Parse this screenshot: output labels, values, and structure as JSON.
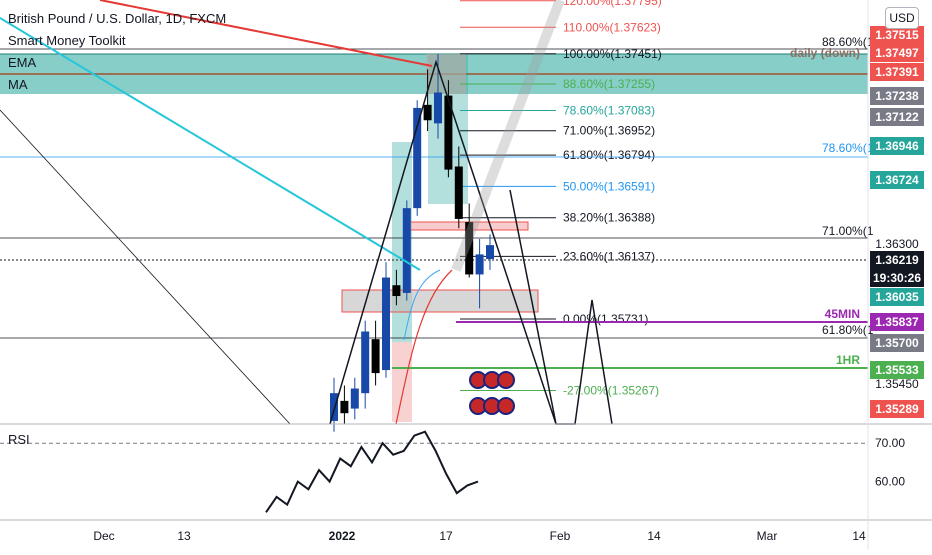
{
  "header": {
    "title": "British Pound / U.S. Dollar, 1D, FXCM",
    "indicators": [
      "Smart Money Toolkit",
      "EMA",
      "MA"
    ],
    "currency_button": "USD"
  },
  "rsi_pane": {
    "label": "RSI",
    "ticks": [
      "70.00",
      "60.00"
    ]
  },
  "colors": {
    "bull": "#1848a8",
    "bear": "#000000",
    "supply_zone": "#26a69a",
    "fib_up": "#ef5350",
    "fib_blue": "#2196f3",
    "fib_green": "#4caf50",
    "trend_red": "#e53935",
    "trend_cyan": "#26c6da",
    "tag_45min": "#9c27b0",
    "tag_1hr": "#4caf50",
    "price_tag": "#131722"
  },
  "chart_data": {
    "type": "candlestick",
    "symbol": "British Pound / U.S. Dollar",
    "timeframe": "1D",
    "exchange": "FXCM",
    "x_ticks": [
      "Dec",
      "13",
      "2022",
      "17",
      "Feb",
      "14",
      "Mar",
      "14"
    ],
    "y_range": [
      1.3505,
      1.378
    ],
    "candles": [
      {
        "o": 1.3507,
        "h": 1.3535,
        "l": 1.35,
        "c": 1.3525
      },
      {
        "o": 1.352,
        "h": 1.353,
        "l": 1.3505,
        "c": 1.3512
      },
      {
        "o": 1.3515,
        "h": 1.3535,
        "l": 1.3508,
        "c": 1.3528
      },
      {
        "o": 1.3525,
        "h": 1.3572,
        "l": 1.3515,
        "c": 1.3565
      },
      {
        "o": 1.356,
        "h": 1.3572,
        "l": 1.353,
        "c": 1.3538
      },
      {
        "o": 1.354,
        "h": 1.361,
        "l": 1.3535,
        "c": 1.36
      },
      {
        "o": 1.3595,
        "h": 1.3605,
        "l": 1.3582,
        "c": 1.3588
      },
      {
        "o": 1.359,
        "h": 1.365,
        "l": 1.3585,
        "c": 1.3645
      },
      {
        "o": 1.3645,
        "h": 1.3715,
        "l": 1.364,
        "c": 1.371
      },
      {
        "o": 1.3712,
        "h": 1.3735,
        "l": 1.3695,
        "c": 1.3702
      },
      {
        "o": 1.37,
        "h": 1.3745,
        "l": 1.369,
        "c": 1.372
      },
      {
        "o": 1.3718,
        "h": 1.3728,
        "l": 1.3665,
        "c": 1.367
      },
      {
        "o": 1.3672,
        "h": 1.3685,
        "l": 1.3632,
        "c": 1.3638
      },
      {
        "o": 1.3636,
        "h": 1.3648,
        "l": 1.36,
        "c": 1.3602
      },
      {
        "o": 1.3602,
        "h": 1.3625,
        "l": 1.358,
        "c": 1.3615
      },
      {
        "o": 1.3612,
        "h": 1.3628,
        "l": 1.3605,
        "c": 1.3621
      }
    ],
    "fib_levels": [
      {
        "label": "120.00%(1.37795)",
        "price": 1.37795,
        "color": "#ef5350"
      },
      {
        "label": "110.00%(1.37623)",
        "price": 1.37623,
        "color": "#ef5350"
      },
      {
        "label": "100.00%(1.37451)",
        "price": 1.37451,
        "color": "#131722"
      },
      {
        "label": "88.60%(1.37255)",
        "price": 1.37255,
        "color": "#4caf50"
      },
      {
        "label": "78.60%(1.37083)",
        "price": 1.37083,
        "color": "#26a69a"
      },
      {
        "label": "71.00%(1.36952)",
        "price": 1.36952,
        "color": "#131722"
      },
      {
        "label": "61.80%(1.36794)",
        "price": 1.36794,
        "color": "#131722"
      },
      {
        "label": "50.00%(1.36591)",
        "price": 1.36591,
        "color": "#2196f3"
      },
      {
        "label": "38.20%(1.36388)",
        "price": 1.36388,
        "color": "#131722"
      },
      {
        "label": "23.60%(1.36137)",
        "price": 1.36137,
        "color": "#131722"
      },
      {
        "label": "0.00%(1.35731)",
        "price": 1.35731,
        "color": "#131722"
      },
      {
        "label": "-27.00%(1.35267)",
        "price": 1.35267,
        "color": "#4caf50"
      }
    ],
    "right_fib_levels": [
      {
        "label": "88.60%(1",
        "color": "#131722"
      },
      {
        "label": "78.60%(1",
        "color": "#2196f3"
      },
      {
        "label": "71.00%(1",
        "color": "#131722"
      },
      {
        "label": "61.80%(1",
        "color": "#131722"
      }
    ],
    "annotations": [
      {
        "label": "daily (down)",
        "color": "#8d6e63"
      },
      {
        "label": "45MIN",
        "color": "#9c27b0"
      },
      {
        "label": "1HR",
        "color": "#4caf50"
      }
    ],
    "price_labels": [
      {
        "text": "1.37515",
        "bg": "#ef5350",
        "fg": "#ffffff"
      },
      {
        "text": "1.37497",
        "bg": "#ef5350",
        "fg": "#ffffff"
      },
      {
        "text": "1.37391",
        "bg": "#ef5350",
        "fg": "#ffffff"
      },
      {
        "text": "1.37238",
        "bg": "#787b86",
        "fg": "#ffffff"
      },
      {
        "text": "1.37122",
        "bg": "#787b86",
        "fg": "#ffffff"
      },
      {
        "text": "1.36946",
        "bg": "#26a69a",
        "fg": "#ffffff"
      },
      {
        "text": "1.36724",
        "bg": "#26a69a",
        "fg": "#ffffff"
      },
      {
        "text": "1.36300",
        "bg": "",
        "fg": "#131722"
      },
      {
        "text": "1.36219",
        "bg": "#131722",
        "fg": "#ffffff"
      },
      {
        "text": "19:30:26",
        "bg": "#131722",
        "fg": "#ffffff"
      },
      {
        "text": "1.36035",
        "bg": "#26a69a",
        "fg": "#ffffff"
      },
      {
        "text": "1.35837",
        "bg": "#9c27b0",
        "fg": "#ffffff"
      },
      {
        "text": "1.35700",
        "bg": "#787b86",
        "fg": "#ffffff"
      },
      {
        "text": "1.35533",
        "bg": "#4caf50",
        "fg": "#ffffff"
      },
      {
        "text": "1.35450",
        "bg": "",
        "fg": "#131722"
      },
      {
        "text": "1.35289",
        "bg": "#ef5350",
        "fg": "#ffffff"
      }
    ],
    "rsi": {
      "name": "RSI",
      "values": [
        52,
        56,
        54,
        60,
        58,
        63,
        60,
        66,
        64,
        69,
        65,
        70,
        67,
        68,
        72,
        73,
        68,
        62,
        57,
        59,
        60
      ]
    }
  }
}
